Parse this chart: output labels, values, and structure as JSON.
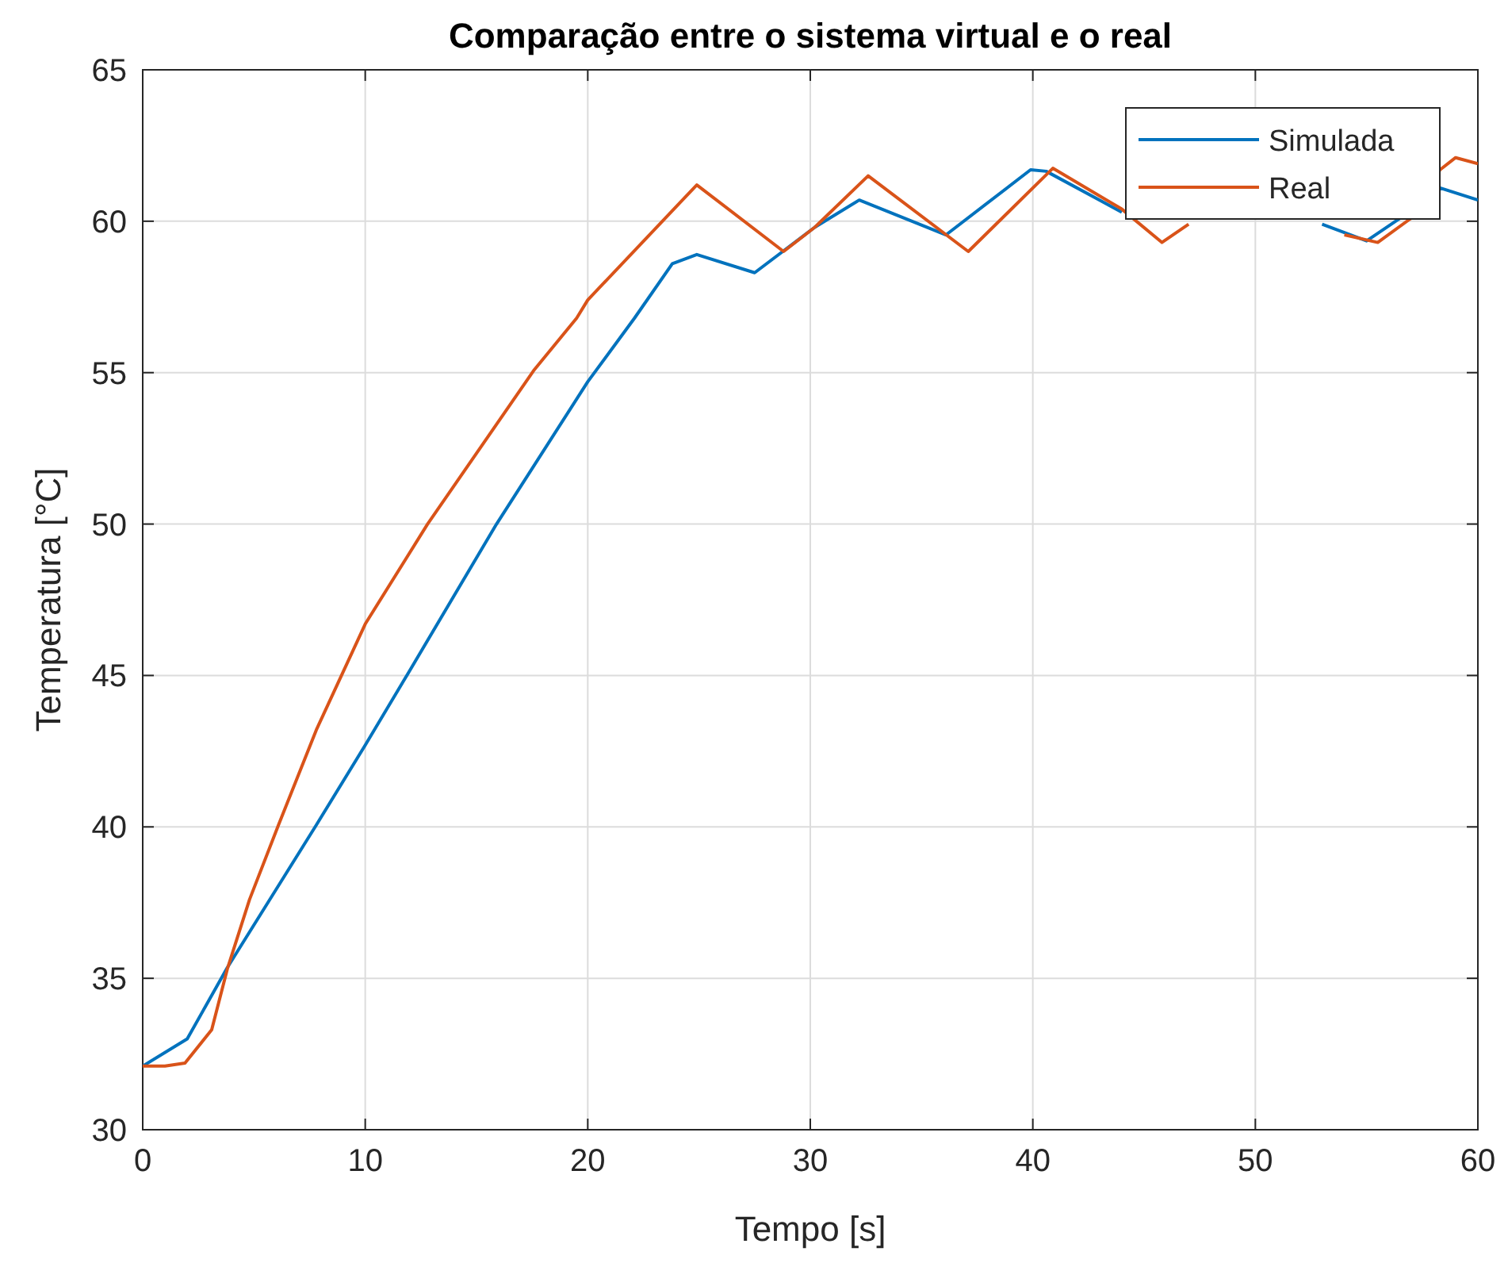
{
  "chart_data": {
    "type": "line",
    "title": "Comparação entre o sistema virtual e o real",
    "xlabel": "Tempo [s]",
    "ylabel": "Temperatura [°C]",
    "xlim": [
      0,
      60
    ],
    "ylim": [
      30,
      65
    ],
    "xticks": [
      0,
      10,
      20,
      30,
      40,
      50,
      60
    ],
    "yticks": [
      30,
      35,
      40,
      45,
      50,
      55,
      60,
      65
    ],
    "grid": true,
    "legend": "top right",
    "series": [
      {
        "name": "Simulada",
        "color": "#0072bd",
        "x": [
          0,
          2,
          3.8,
          7.8,
          10,
          11.9,
          15.9,
          20,
          22.1,
          23.8,
          24.9,
          27.5,
          30.2,
          32.2,
          36.1,
          39.9,
          40.6,
          44,
          45,
          53,
          55,
          56.5,
          58.3,
          60
        ],
        "values": [
          32.1,
          33,
          35.35,
          40.06,
          42.7,
          45.04,
          50,
          54.7,
          56.8,
          58.6,
          58.9,
          58.3,
          59.8,
          60.7,
          59.55,
          61.7,
          61.65,
          60.3,
          null,
          59.9,
          59.35,
          60.1,
          61.1,
          60.7
        ]
      },
      {
        "name": "Real",
        "color": "#d95319",
        "x": [
          0,
          1,
          1.9,
          3.1,
          3.8,
          4.8,
          6.1,
          7.8,
          10,
          12.8,
          17.6,
          19.5,
          20,
          24.9,
          28.8,
          30.2,
          32.6,
          37.1,
          40.9,
          44,
          45.8,
          47,
          50,
          54,
          55.5,
          57,
          58.3,
          59,
          60
        ],
        "values": [
          32.1,
          32.1,
          32.2,
          33.3,
          35.3,
          37.6,
          40.06,
          43.2,
          46.7,
          50,
          55.1,
          56.8,
          57.4,
          61.2,
          59,
          59.8,
          61.5,
          59,
          61.75,
          60.4,
          59.3,
          59.9,
          null,
          59.55,
          59.3,
          60.1,
          61.7,
          62.1,
          61.9
        ]
      }
    ]
  }
}
